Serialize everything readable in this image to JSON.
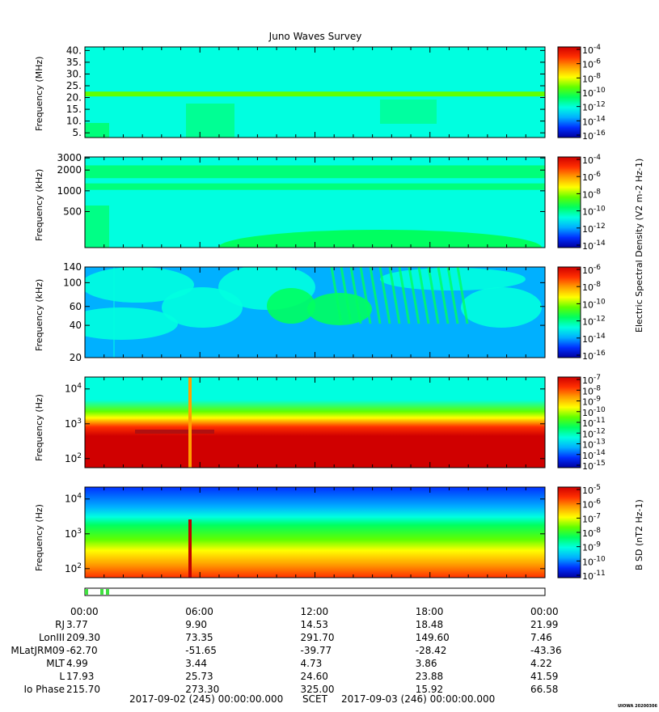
{
  "title": "Juno Waves Survey",
  "colors": {
    "colormap": [
      "#0000a0",
      "#0030ff",
      "#00b0ff",
      "#00ffe0",
      "#00ff60",
      "#60ff00",
      "#ffff00",
      "#ffa000",
      "#ff3000",
      "#d00000"
    ]
  },
  "panels": [
    {
      "ylabel": "Frequency (MHz)",
      "yscale": "linear",
      "ylim": [
        3,
        41.5
      ],
      "yticks": [
        "40.",
        "35.",
        "30.",
        "25.",
        "20.",
        "15.",
        "10.",
        "5."
      ],
      "ytick_values": [
        40,
        35,
        30,
        25,
        20,
        15,
        10,
        5
      ],
      "background_level": 0.35,
      "bands": [
        {
          "f": 21.5,
          "level": 0.5
        }
      ],
      "cbar_ticks": [
        "10-4",
        "10-6",
        "10-8",
        "10-10",
        "10-12",
        "10-14",
        "10-16"
      ]
    },
    {
      "ylabel": "Frequency (kHz)",
      "yscale": "log",
      "ylim": [
        150,
        3100
      ],
      "yticks": [
        "3000",
        "2000",
        "1000",
        "500"
      ],
      "ytick_values": [
        3000,
        2000,
        1000,
        500
      ],
      "background_level": 0.38,
      "bands": [
        {
          "f": 2100,
          "level": 0.45
        },
        {
          "f": 1700,
          "level": 0.45
        },
        {
          "f": 1150,
          "level": 0.45
        }
      ],
      "cbar_ticks": [
        "10-4",
        "10-6",
        "10-8",
        "10-10",
        "10-12",
        "10-14"
      ],
      "cbar_title": "Electric Spectral Density (V2 m-2 Hz-1)"
    },
    {
      "ylabel": "Frequency (kHz)",
      "yscale": "log",
      "ylim": [
        20,
        140
      ],
      "yticks": [
        "140",
        "100",
        "60",
        "40",
        "20"
      ],
      "ytick_values": [
        140,
        100,
        60,
        40,
        20
      ],
      "background_level": 0.22,
      "cbar_ticks": [
        "10-6",
        "10-8",
        "10-10",
        "10-12",
        "10-14",
        "10-16"
      ]
    },
    {
      "ylabel": "Frequency (Hz)",
      "yscale": "log",
      "ylim": [
        55,
        22000
      ],
      "yticks": [
        "10^4",
        "10^3",
        "10^2"
      ],
      "ytick_values": [
        10000,
        1000,
        100
      ],
      "background_level": 0.3,
      "cbar_ticks": [
        "10-7",
        "10-8",
        "10-9",
        "10-10",
        "10-11",
        "10-12",
        "10-13",
        "10-14",
        "10-15"
      ]
    },
    {
      "ylabel": "Frequency (Hz)",
      "yscale": "log",
      "ylim": [
        55,
        22000
      ],
      "yticks": [
        "10^4",
        "10^3",
        "10^2"
      ],
      "ytick_values": [
        10000,
        1000,
        100
      ],
      "background_level": 0.2,
      "cbar_ticks": [
        "10-5",
        "10-6",
        "10-7",
        "10-8",
        "10-9",
        "10-10",
        "10-11"
      ],
      "cbar_title": "B SD (nT2 Hz-1)"
    }
  ],
  "time_axis": {
    "ticks": [
      "00:00",
      "06:00",
      "12:00",
      "18:00",
      "00:00"
    ]
  },
  "ephemeris": [
    {
      "label": "RJ",
      "values": [
        "3.77",
        "9.90",
        "14.53",
        "18.48",
        "21.99"
      ]
    },
    {
      "label": "LonIII",
      "values": [
        "209.30",
        "73.35",
        "291.70",
        "149.60",
        "7.46"
      ]
    },
    {
      "label": "MLatJRM09",
      "values": [
        "-62.70",
        "-51.65",
        "-39.77",
        "-28.42",
        "-43.36"
      ]
    },
    {
      "label": "MLT",
      "values": [
        "4.99",
        "3.44",
        "4.73",
        "3.86",
        "4.22"
      ]
    },
    {
      "label": "L",
      "values": [
        "17.93",
        "25.73",
        "24.60",
        "23.88",
        "41.59"
      ]
    },
    {
      "label": "Io Phase",
      "values": [
        "215.70",
        "273.30",
        "325.00",
        "15.92",
        "66.58"
      ]
    }
  ],
  "footer": {
    "start": "2017-09-02 (245) 00:00:00.000",
    "scet": "SCET",
    "end": "2017-09-03 (246) 00:00:00.000"
  },
  "stamp": "UIOWA 20200306",
  "chart_data": {
    "type": "heatmap",
    "title": "Juno Waves Survey",
    "x_range": [
      "2017-09-02 00:00",
      "2017-09-03 00:00"
    ],
    "xticks": [
      "00:00",
      "06:00",
      "12:00",
      "18:00",
      "00:00"
    ],
    "series": [
      {
        "ylabel": "Frequency (MHz)",
        "ylim": [
          3,
          41.5
        ],
        "colorbar": "10^-16 to 10^-4"
      },
      {
        "ylabel": "Frequency (kHz)",
        "ylim": [
          150,
          3100
        ],
        "colorbar": "10^-14 to 10^-4"
      },
      {
        "ylabel": "Frequency (kHz)",
        "ylim": [
          20,
          140
        ],
        "colorbar": "10^-16 to 10^-6"
      },
      {
        "ylabel": "Frequency (Hz)",
        "ylim": [
          55,
          22000
        ],
        "colorbar": "10^-15 to 10^-7"
      },
      {
        "ylabel": "Frequency (Hz)",
        "ylim": [
          55,
          22000
        ],
        "colorbar": "10^-11 to 10^-5"
      }
    ],
    "colorbar_titles": [
      "Electric Spectral Density (V2 m-2 Hz-1)",
      "B SD (nT2 Hz-1)"
    ]
  }
}
